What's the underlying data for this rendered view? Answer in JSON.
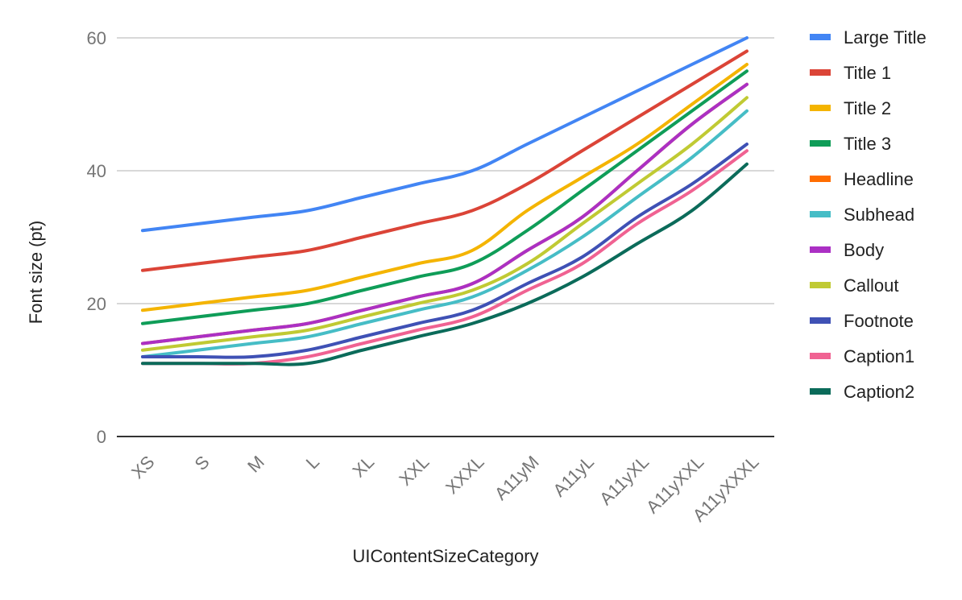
{
  "chart_data": {
    "type": "line",
    "title": "",
    "xlabel": "UIContentSizeCategory",
    "ylabel": "Font size (pt)",
    "ylim": [
      0,
      60
    ],
    "yticks": [
      0,
      20,
      40,
      60
    ],
    "grid": true,
    "legend_position": "right",
    "categories": [
      "XS",
      "S",
      "M",
      "L",
      "XL",
      "XXL",
      "XXXL",
      "A11yM",
      "A11yL",
      "A11yXL",
      "A11yXXL",
      "A11yXXXL"
    ],
    "series": [
      {
        "name": "Large Title",
        "color": "#4285f4",
        "values": [
          31,
          32,
          33,
          34,
          36,
          38,
          40,
          44,
          48,
          52,
          56,
          60
        ]
      },
      {
        "name": "Title 1",
        "color": "#db4437",
        "values": [
          25,
          26,
          27,
          28,
          30,
          32,
          34,
          38,
          43,
          48,
          53,
          58
        ]
      },
      {
        "name": "Title 2",
        "color": "#f4b400",
        "values": [
          19,
          20,
          21,
          22,
          24,
          26,
          28,
          34,
          39,
          44,
          50,
          56
        ]
      },
      {
        "name": "Title 3",
        "color": "#0f9d58",
        "values": [
          17,
          18,
          19,
          20,
          22,
          24,
          26,
          31,
          37,
          43,
          49,
          55
        ]
      },
      {
        "name": "Headline",
        "color": "#ff6d00",
        "values": [
          14,
          15,
          16,
          17,
          19,
          21,
          23,
          28,
          33,
          40,
          47,
          53
        ]
      },
      {
        "name": "Subhead",
        "color": "#46bdc6",
        "values": [
          12,
          13,
          14,
          15,
          17,
          19,
          21,
          25,
          30,
          36,
          42,
          49
        ]
      },
      {
        "name": "Body",
        "color": "#ab30c4",
        "values": [
          14,
          15,
          16,
          17,
          19,
          21,
          23,
          28,
          33,
          40,
          47,
          53
        ]
      },
      {
        "name": "Callout",
        "color": "#c0ca33",
        "values": [
          13,
          14,
          15,
          16,
          18,
          20,
          22,
          26,
          32,
          38,
          44,
          51
        ]
      },
      {
        "name": "Footnote",
        "color": "#3f51b5",
        "values": [
          12,
          12,
          12,
          13,
          15,
          17,
          19,
          23,
          27,
          33,
          38,
          44
        ]
      },
      {
        "name": "Caption1",
        "color": "#f06292",
        "values": [
          11,
          11,
          11,
          12,
          14,
          16,
          18,
          22,
          26,
          32,
          37,
          43
        ]
      },
      {
        "name": "Caption2",
        "color": "#0b6b5a",
        "values": [
          11,
          11,
          11,
          11,
          13,
          15,
          17,
          20,
          24,
          29,
          34,
          41
        ]
      }
    ]
  }
}
